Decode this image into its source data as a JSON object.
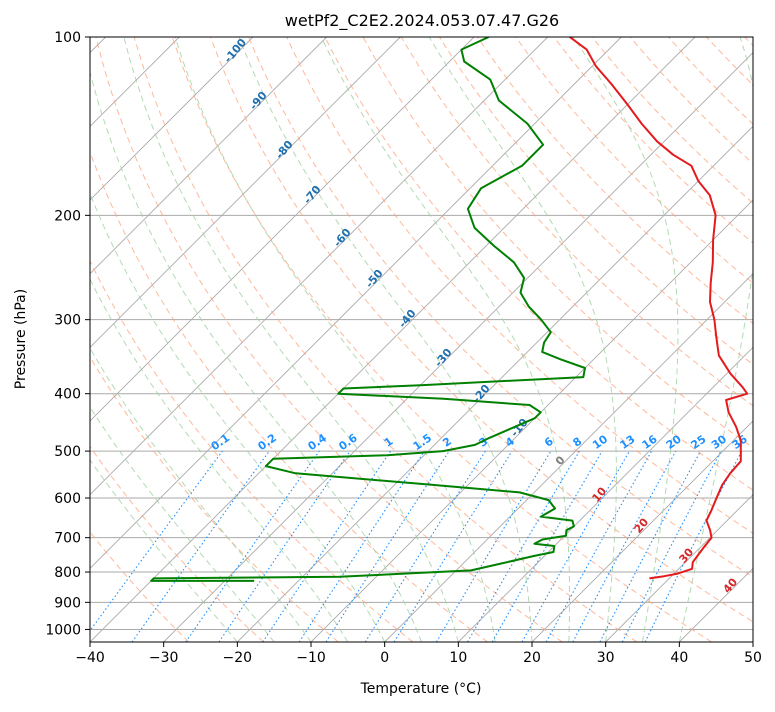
{
  "chart_data": {
    "type": "line",
    "title": "wetPf2_C2E2.2024.053.07.47.G26",
    "xlabel": "Temperature (°C)",
    "ylabel": "Pressure (hPa)",
    "xlim": [
      -40,
      50
    ],
    "ylim": [
      1050,
      100
    ],
    "y_scale": "log",
    "skew": "skew-T log-p",
    "grid": true,
    "x_ticks": [
      -40,
      -30,
      -20,
      -10,
      0,
      10,
      20,
      30,
      40,
      50
    ],
    "y_ticks": [
      100,
      200,
      300,
      400,
      500,
      600,
      700,
      800,
      900,
      1000
    ],
    "series": [
      {
        "color": "#e41a1c",
        "points": [
          [
            27.3,
            820
          ],
          [
            29.0,
            813
          ],
          [
            30.5,
            805
          ],
          [
            31.8,
            790
          ],
          [
            31.0,
            770
          ],
          [
            30.5,
            730
          ],
          [
            30.2,
            700
          ],
          [
            29.0,
            680
          ],
          [
            27.2,
            655
          ],
          [
            26.5,
            630
          ],
          [
            25.5,
            600
          ],
          [
            24.5,
            570
          ],
          [
            24.0,
            545
          ],
          [
            23.8,
            520
          ],
          [
            21.0,
            480
          ],
          [
            18.5,
            455
          ],
          [
            15.5,
            430
          ],
          [
            13.5,
            410
          ],
          [
            15.5,
            400
          ],
          [
            14.0,
            390
          ],
          [
            10.5,
            370
          ],
          [
            6.5,
            345
          ],
          [
            3.5,
            320
          ],
          [
            1.0,
            300
          ],
          [
            -2.0,
            280
          ],
          [
            -4.5,
            260
          ],
          [
            -7.0,
            240
          ],
          [
            -10.0,
            220
          ],
          [
            -13.0,
            200
          ],
          [
            -16.5,
            185
          ],
          [
            -20.0,
            175
          ],
          [
            -23.0,
            165
          ],
          [
            -27.0,
            158
          ],
          [
            -31.0,
            150
          ],
          [
            -35.5,
            140
          ],
          [
            -40.0,
            130
          ],
          [
            -45.0,
            120
          ],
          [
            -49.5,
            112
          ],
          [
            -53.0,
            105
          ],
          [
            -57.0,
            100
          ]
        ]
      },
      {
        "color": "#008000",
        "points": [
          [
            -26.0,
            828
          ],
          [
            -40.0,
            828
          ],
          [
            -40.0,
            820
          ],
          [
            -15.0,
            815
          ],
          [
            2.0,
            795
          ],
          [
            5.0,
            775
          ],
          [
            8.5,
            752
          ],
          [
            10.7,
            740
          ],
          [
            10.0,
            723
          ],
          [
            7.0,
            717
          ],
          [
            7.5,
            705
          ],
          [
            10.2,
            695
          ],
          [
            9.5,
            680
          ],
          [
            10.0,
            670
          ],
          [
            9.0,
            655
          ],
          [
            4.2,
            645
          ],
          [
            5.0,
            625
          ],
          [
            3.0,
            605
          ],
          [
            -2.0,
            587
          ],
          [
            -15.0,
            570
          ],
          [
            -35.0,
            545
          ],
          [
            -40.0,
            530
          ],
          [
            -40.0,
            515
          ],
          [
            -25.0,
            508
          ],
          [
            -18.0,
            500
          ],
          [
            -14.5,
            488
          ],
          [
            -13.5,
            475
          ],
          [
            -12.0,
            460
          ],
          [
            -10.0,
            440
          ],
          [
            -10.0,
            430
          ],
          [
            -12.5,
            418
          ],
          [
            -25.0,
            408
          ],
          [
            -40.0,
            400
          ],
          [
            -40.0,
            392
          ],
          [
            -30.0,
            387
          ],
          [
            -9.0,
            375
          ],
          [
            -10.0,
            362
          ],
          [
            -14.5,
            350
          ],
          [
            -18.0,
            340
          ],
          [
            -19.0,
            328
          ],
          [
            -19.5,
            315
          ],
          [
            -22.5,
            300
          ],
          [
            -26.0,
            285
          ],
          [
            -29.0,
            270
          ],
          [
            -30.5,
            255
          ],
          [
            -34.0,
            240
          ],
          [
            -39.0,
            225
          ],
          [
            -44.0,
            210
          ],
          [
            -47.5,
            195
          ],
          [
            -48.5,
            180
          ],
          [
            -46.0,
            165
          ],
          [
            -46.0,
            152
          ],
          [
            -51.0,
            140
          ],
          [
            -58.0,
            128
          ],
          [
            -62.0,
            118
          ],
          [
            -68.0,
            110
          ],
          [
            -70.0,
            105
          ],
          [
            -68.0,
            100
          ]
        ]
      }
    ],
    "dry_adiabat_labels": [
      "-100",
      "-90",
      "-80",
      "-70",
      "-60",
      "-50",
      "-40",
      "-30",
      "-20",
      "-10",
      "0",
      "10",
      "20",
      "30",
      "40"
    ],
    "mixing_ratio_labels": [
      "0.1",
      "0.2",
      "0.4",
      "0.6",
      "1",
      "1.5",
      "2",
      "3",
      "4",
      "6",
      "8",
      "10",
      "13",
      "16",
      "20",
      "25",
      "30",
      "36"
    ],
    "colors": {
      "temperature": "#e41a1c",
      "dewpoint": "#008000",
      "dry_adiabat": "#ffa07a",
      "moist_adiabat": "#a0d0a0",
      "mixing_ratio": "#1e90ff",
      "isotherm": "#aaaaaa",
      "label_blue": "#1f6fb0",
      "label_red": "#d62728",
      "label_grey": "#808080"
    }
  }
}
